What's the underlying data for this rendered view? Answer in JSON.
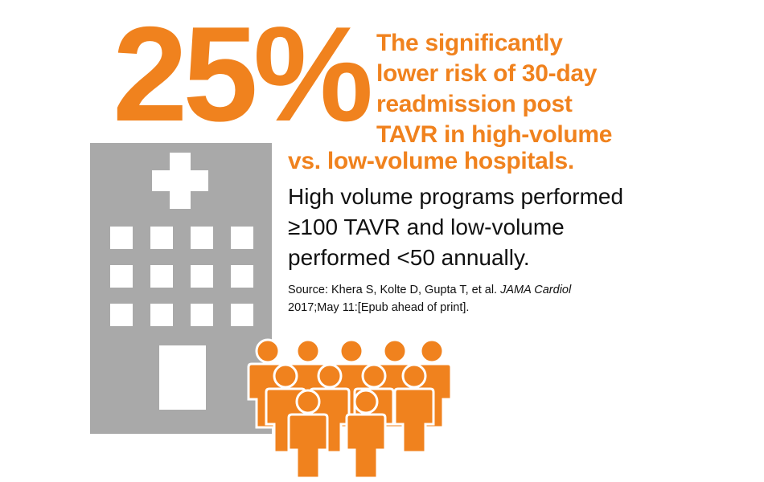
{
  "colors": {
    "accent": "#f0821e",
    "building": "#a9a9a9",
    "text": "#111111"
  },
  "stat": {
    "value": "25%"
  },
  "headline": {
    "line1": "The significantly",
    "line2": "lower risk of 30-day",
    "line3": "readmission post",
    "line4": "TAVR in high-volume",
    "line5": "vs. low-volume hospitals."
  },
  "detail": {
    "line1": "High volume programs performed",
    "line2": "≥100 TAVR and low-volume",
    "line3": "performed <50 annually."
  },
  "source": {
    "prefix": "Source: Khera S, Kolte D, Gupta T, et al.",
    "journal": "JAMA Cardiol",
    "citation": "2017;May 11:[Epub ahead of print]."
  },
  "icons": {
    "building": "hospital-building-icon",
    "people": "crowd-of-people-icon"
  }
}
